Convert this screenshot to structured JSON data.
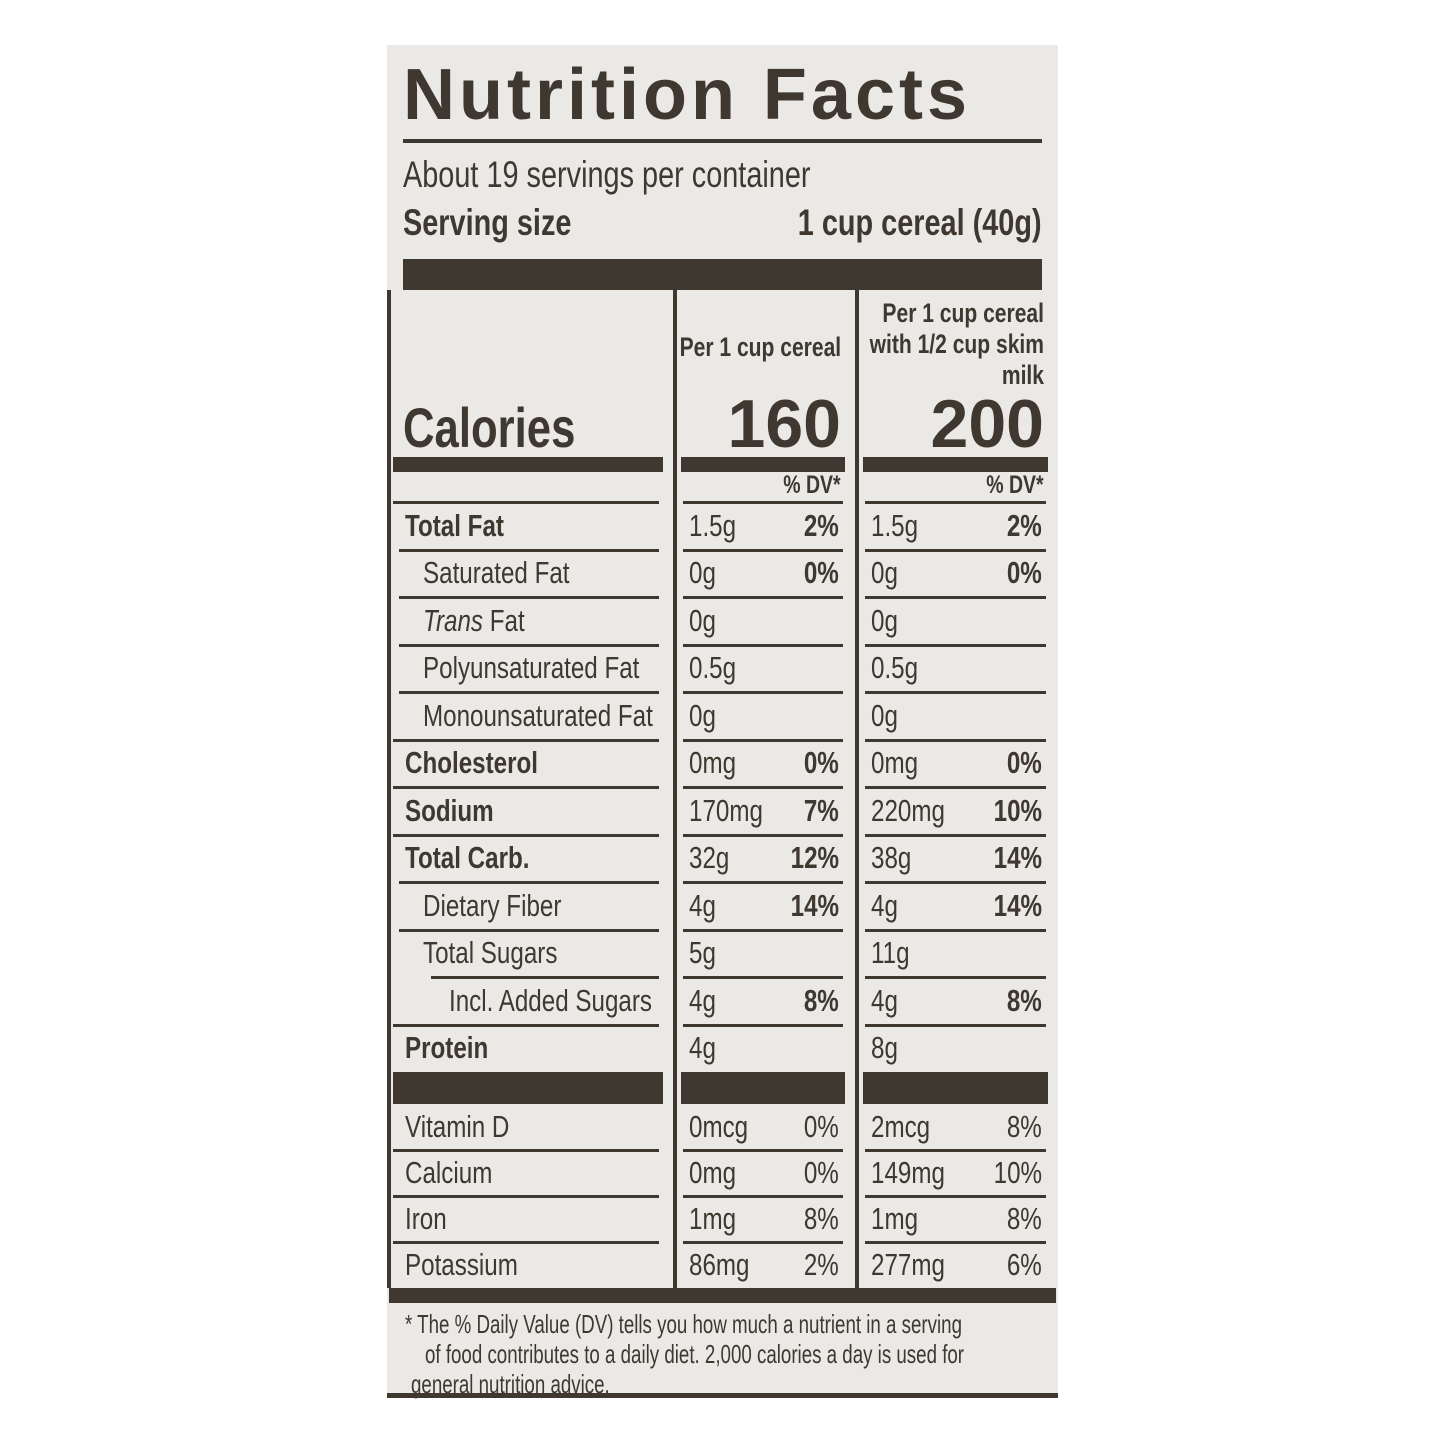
{
  "colors": {
    "ink": "#3e3831",
    "label_bg": "#ebe9e5",
    "page_bg": "#ffffff"
  },
  "label": {
    "title": "Nutrition Facts",
    "servings_per_container": "About 19 servings per container",
    "serving_size_label": "Serving size",
    "serving_size_value": "1 cup cereal (40g)",
    "columns": {
      "col2_header": "Per 1 cup cereal",
      "col3_header": "Per 1 cup cereal with 1/2 cup skim milk"
    },
    "calories": {
      "label": "Calories",
      "col2": "160",
      "col3": "200"
    },
    "dv_header": "% DV*",
    "main_rows": [
      {
        "name": "Total Fat",
        "bold": true,
        "indent": 0,
        "c2_amount": "1.5g",
        "c2_dv": "2%",
        "c3_amount": "1.5g",
        "c3_dv": "2%"
      },
      {
        "name": "Saturated Fat",
        "bold": false,
        "indent": 1,
        "c2_amount": "0g",
        "c2_dv": "0%",
        "c3_amount": "0g",
        "c3_dv": "0%"
      },
      {
        "name": "Trans Fat",
        "italic_prefix": "Trans",
        "bold": false,
        "indent": 1,
        "c2_amount": "0g",
        "c2_dv": "",
        "c3_amount": "0g",
        "c3_dv": ""
      },
      {
        "name": "Polyunsaturated Fat",
        "bold": false,
        "indent": 1,
        "c2_amount": "0.5g",
        "c2_dv": "",
        "c3_amount": "0.5g",
        "c3_dv": ""
      },
      {
        "name": "Monounsaturated Fat",
        "bold": false,
        "indent": 1,
        "c2_amount": "0g",
        "c2_dv": "",
        "c3_amount": "0g",
        "c3_dv": ""
      },
      {
        "name": "Cholesterol",
        "bold": true,
        "indent": 0,
        "c2_amount": "0mg",
        "c2_dv": "0%",
        "c3_amount": "0mg",
        "c3_dv": "0%"
      },
      {
        "name": "Sodium",
        "bold": true,
        "indent": 0,
        "c2_amount": "170mg",
        "c2_dv": "7%",
        "c3_amount": "220mg",
        "c3_dv": "10%"
      },
      {
        "name": "Total Carb.",
        "bold": true,
        "indent": 0,
        "c2_amount": "32g",
        "c2_dv": "12%",
        "c3_amount": "38g",
        "c3_dv": "14%"
      },
      {
        "name": "Dietary Fiber",
        "bold": false,
        "indent": 1,
        "c2_amount": "4g",
        "c2_dv": "14%",
        "c3_amount": "4g",
        "c3_dv": "14%"
      },
      {
        "name": "Total Sugars",
        "bold": false,
        "indent": 1,
        "c2_amount": "5g",
        "c2_dv": "",
        "c3_amount": "11g",
        "c3_dv": ""
      },
      {
        "name": "Incl. Added Sugars",
        "bold": false,
        "indent": 2,
        "c2_amount": "4g",
        "c2_dv": "8%",
        "c3_amount": "4g",
        "c3_dv": "8%"
      },
      {
        "name": "Protein",
        "bold": true,
        "indent": 0,
        "c2_amount": "4g",
        "c2_dv": "",
        "c3_amount": "8g",
        "c3_dv": ""
      }
    ],
    "mineral_rows": [
      {
        "name": "Vitamin D",
        "bold": false,
        "indent": 0,
        "c2_amount": "0mcg",
        "c2_dv": "0%",
        "c3_amount": "2mcg",
        "c3_dv": "8%"
      },
      {
        "name": "Calcium",
        "bold": false,
        "indent": 0,
        "c2_amount": "0mg",
        "c2_dv": "0%",
        "c3_amount": "149mg",
        "c3_dv": "10%"
      },
      {
        "name": "Iron",
        "bold": false,
        "indent": 0,
        "c2_amount": "1mg",
        "c2_dv": "8%",
        "c3_amount": "1mg",
        "c3_dv": "8%"
      },
      {
        "name": "Potassium",
        "bold": false,
        "indent": 0,
        "c2_amount": "86mg",
        "c2_dv": "2%",
        "c3_amount": "277mg",
        "c3_dv": "6%"
      }
    ],
    "footnote_lines": [
      "* The % Daily Value (DV) tells you how much a nutrient in a serving",
      "of food contributes to a daily diet. 2,000 calories a day is used for",
      "general nutrition advice."
    ]
  }
}
